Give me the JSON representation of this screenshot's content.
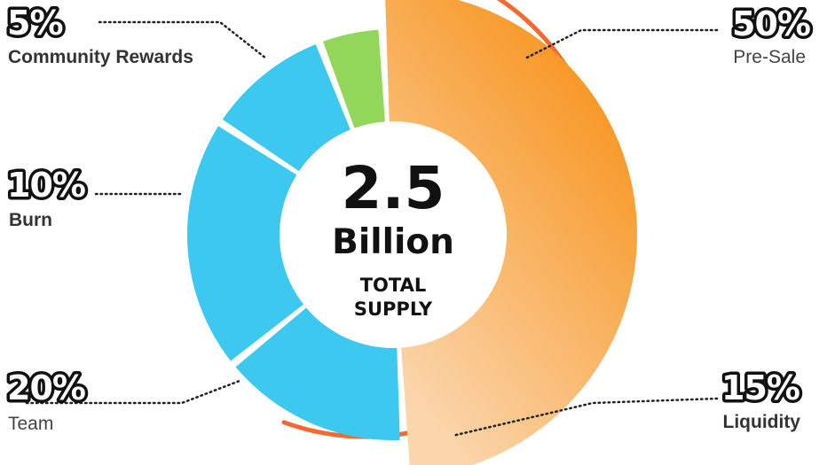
{
  "chart_data": {
    "type": "pie",
    "center": {
      "amount": "2.5",
      "unit": "Billion",
      "caption_line1": "TOTAL",
      "caption_line2": "SUPPLY"
    },
    "slices": [
      {
        "label": "Pre-Sale",
        "percent_text": "50%",
        "value": 50,
        "color": "#f7941d"
      },
      {
        "label": "Liquidity",
        "percent_text": "15%",
        "value": 15,
        "color": "#3dc8f0"
      },
      {
        "label": "Team",
        "percent_text": "20%",
        "value": 20,
        "color": "#3dc8f0"
      },
      {
        "label": "Burn",
        "percent_text": "10%",
        "value": 10,
        "color": "#3dc8f0"
      },
      {
        "label": "Community Rewards",
        "percent_text": "5%",
        "value": 5,
        "color": "#92d65a"
      }
    ],
    "colors": {
      "accent_ring": "#f26a30",
      "presale_light": "#fbd3a6"
    }
  }
}
